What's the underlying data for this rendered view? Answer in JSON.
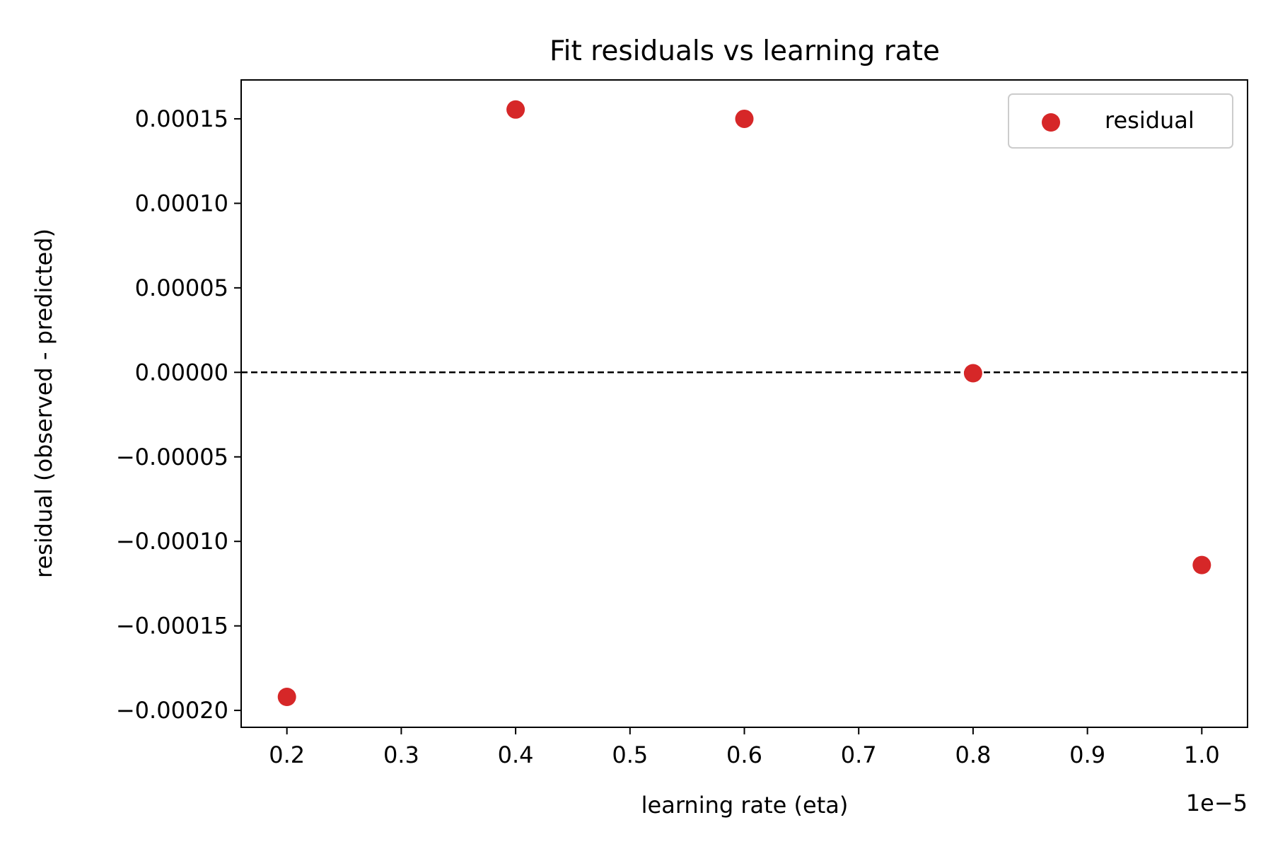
{
  "chart_data": {
    "type": "scatter",
    "title": "Fit residuals vs learning rate",
    "xlabel": "learning rate (eta)",
    "ylabel": "residual (observed - predicted)",
    "x_offset_text": "1e−5",
    "x_scale_factor": 1e-05,
    "xlim": [
      0.16,
      1.04
    ],
    "ylim": [
      -0.00021,
      0.000173
    ],
    "x_ticks": [
      0.2,
      0.3,
      0.4,
      0.5,
      0.6,
      0.7,
      0.8,
      0.9,
      1.0
    ],
    "x_tick_labels": [
      "0.2",
      "0.3",
      "0.4",
      "0.5",
      "0.6",
      "0.7",
      "0.8",
      "0.9",
      "1.0"
    ],
    "y_ticks": [
      0.00015,
      0.0001,
      5e-05,
      0,
      -5e-05,
      -0.0001,
      -0.00015,
      -0.0002
    ],
    "y_tick_labels": [
      "0.00015",
      "0.00010",
      "0.00005",
      "0.00000",
      "−0.00005",
      "−0.00010",
      "−0.00015",
      "−0.00020"
    ],
    "reference_line": {
      "y": 0,
      "style": "dashed",
      "color": "#000000"
    },
    "grid": false,
    "legend": {
      "placement": "top-right",
      "entries": [
        "residual"
      ]
    },
    "series": [
      {
        "name": "residual",
        "color": "#d62728",
        "x": [
          0.2,
          0.4,
          0.6,
          0.8,
          1.0
        ],
        "y": [
          -0.000192,
          0.0001555,
          0.00015,
          -5e-07,
          -0.000114
        ]
      }
    ]
  }
}
